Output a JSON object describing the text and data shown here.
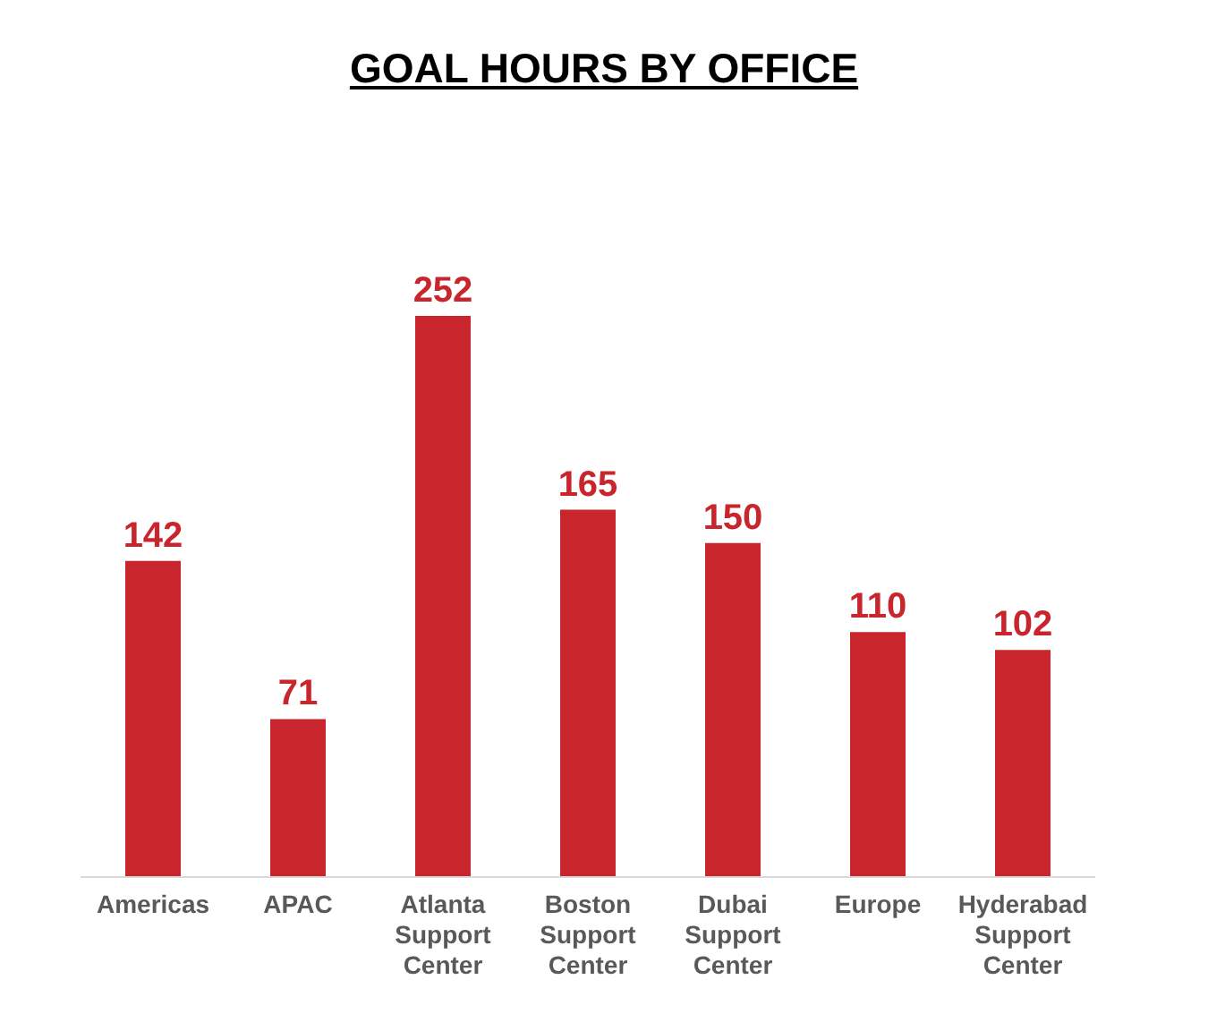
{
  "chart_data": {
    "type": "bar",
    "title": "GOAL HOURS BY OFFICE",
    "categories": [
      "Americas",
      "APAC",
      "Atlanta Support Center",
      "Boston Support Center",
      "Dubai Support Center",
      "Europe",
      "Hyderabad Support Center"
    ],
    "values": [
      142,
      71,
      252,
      165,
      150,
      110,
      102
    ],
    "color": "#c9252c",
    "data_labels": true,
    "grid": false,
    "legend": false
  }
}
